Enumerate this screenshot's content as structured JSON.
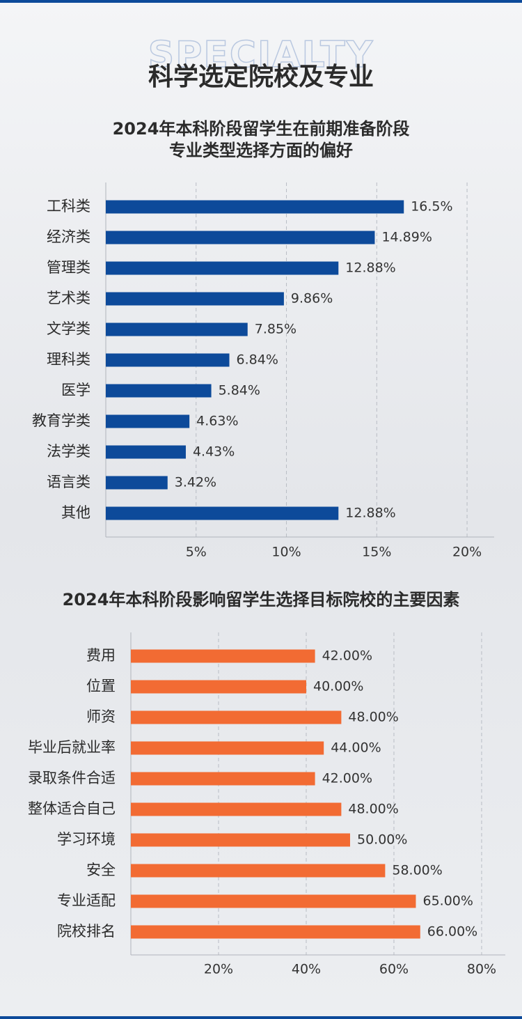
{
  "header": {
    "watermark": "SPECIALTY",
    "title": "科学选定院校及专业"
  },
  "chart_data": [
    {
      "type": "bar",
      "orientation": "horizontal",
      "title": [
        "2024年本科阶段留学生在前期准备阶段",
        "专业类型选择方面的偏好"
      ],
      "categories": [
        "工科类",
        "经济类",
        "管理类",
        "艺术类",
        "文学类",
        "理科类",
        "医学",
        "教育学类",
        "法学类",
        "语言类",
        "其他"
      ],
      "values": [
        16.5,
        14.89,
        12.88,
        9.86,
        7.85,
        6.84,
        5.84,
        4.63,
        4.43,
        3.42,
        12.88
      ],
      "value_labels": [
        "16.5%",
        "14.89%",
        "12.88%",
        "9.86%",
        "7.85%",
        "6.84%",
        "5.84%",
        "4.63%",
        "4.43%",
        "3.42%",
        "12.88%"
      ],
      "color": "#0d4a9a",
      "xlim": [
        0,
        21.5
      ],
      "xticks": [
        {
          "value": 5,
          "label": "5%"
        },
        {
          "value": 10,
          "label": "10%"
        },
        {
          "value": 15,
          "label": "15%"
        },
        {
          "value": 20,
          "label": "20%"
        }
      ],
      "grid": true
    },
    {
      "type": "bar",
      "orientation": "horizontal",
      "title": [
        "2024年本科阶段影响留学生选择目标院校的主要因素"
      ],
      "categories": [
        "费用",
        "位置",
        "师资",
        "毕业后就业率",
        "录取条件合适",
        "整体适合自己",
        "学习环境",
        "安全",
        "专业适配",
        "院校排名"
      ],
      "values": [
        42,
        40,
        48,
        44,
        42,
        48,
        50,
        58,
        65,
        66
      ],
      "value_labels": [
        "42.00%",
        "40.00%",
        "48.00%",
        "44.00%",
        "42.00%",
        "48.00%",
        "50.00%",
        "58.00%",
        "65.00%",
        "66.00%"
      ],
      "color": "#f26b33",
      "xlim": [
        0,
        85.4
      ],
      "xticks": [
        {
          "value": 20,
          "label": "20%"
        },
        {
          "value": 40,
          "label": "40%"
        },
        {
          "value": 60,
          "label": "60%"
        },
        {
          "value": 80,
          "label": "80%"
        }
      ],
      "grid": true
    }
  ]
}
